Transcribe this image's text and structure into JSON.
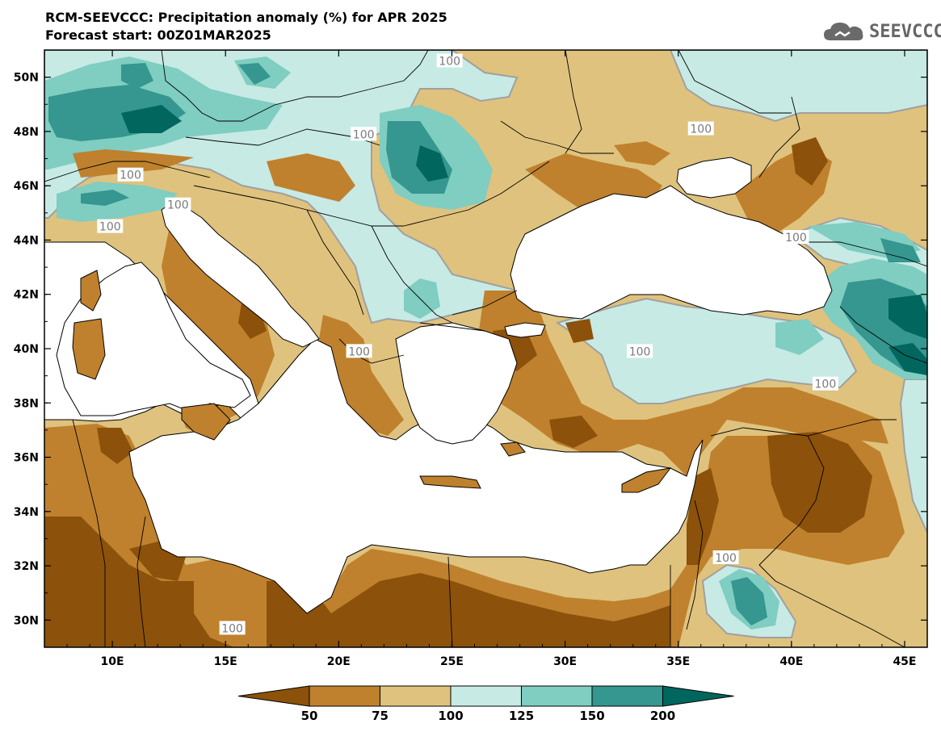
{
  "header": {
    "title": "RCM-SEEVCCC: Precipitation anomaly (%) for APR 2025",
    "subtitle": "Forecast start: 00Z01MAR2025",
    "logo_text": "SEEVCCC"
  },
  "map": {
    "lon_range": [
      7,
      46
    ],
    "lat_range": [
      29,
      51
    ],
    "lon_ticks": [
      {
        "value": 10,
        "label": "10E"
      },
      {
        "value": 15,
        "label": "15E"
      },
      {
        "value": 20,
        "label": "20E"
      },
      {
        "value": 25,
        "label": "25E"
      },
      {
        "value": 30,
        "label": "30E"
      },
      {
        "value": 35,
        "label": "35E"
      },
      {
        "value": 40,
        "label": "40E"
      },
      {
        "value": 45,
        "label": "45E"
      }
    ],
    "lat_ticks": [
      {
        "value": 30,
        "label": "30N"
      },
      {
        "value": 32,
        "label": "32N"
      },
      {
        "value": 34,
        "label": "34N"
      },
      {
        "value": 36,
        "label": "36N"
      },
      {
        "value": 38,
        "label": "38N"
      },
      {
        "value": 40,
        "label": "40N"
      },
      {
        "value": 42,
        "label": "42N"
      },
      {
        "value": 44,
        "label": "44N"
      },
      {
        "value": 46,
        "label": "46N"
      },
      {
        "value": 48,
        "label": "48N"
      },
      {
        "value": 50,
        "label": "50N"
      }
    ],
    "contour_labels": [
      {
        "text": "100",
        "lon": 24.9,
        "lat": 50.6
      },
      {
        "text": "100",
        "lon": 21.1,
        "lat": 47.9
      },
      {
        "text": "100",
        "lon": 10.8,
        "lat": 46.4
      },
      {
        "text": "100",
        "lon": 12.9,
        "lat": 45.3
      },
      {
        "text": "100",
        "lon": 9.9,
        "lat": 44.5
      },
      {
        "text": "100",
        "lon": 36.0,
        "lat": 48.1
      },
      {
        "text": "100",
        "lon": 40.2,
        "lat": 44.1
      },
      {
        "text": "100",
        "lon": 33.3,
        "lat": 39.9
      },
      {
        "text": "100",
        "lon": 20.9,
        "lat": 39.9
      },
      {
        "text": "100",
        "lon": 41.5,
        "lat": 38.7
      },
      {
        "text": "100",
        "lon": 37.1,
        "lat": 32.3
      },
      {
        "text": "100",
        "lon": 15.3,
        "lat": 29.7
      }
    ],
    "category_colors": [
      "#8c510a",
      "#bf812d",
      "#dfc27d",
      "#c7eae5",
      "#80cdc1",
      "#35978f",
      "#01665e"
    ],
    "land_color": "#dfc27d",
    "water_color": "#ffffff"
  },
  "colorbar": {
    "labels": [
      "50",
      "75",
      "100",
      "125",
      "150",
      "200"
    ]
  }
}
